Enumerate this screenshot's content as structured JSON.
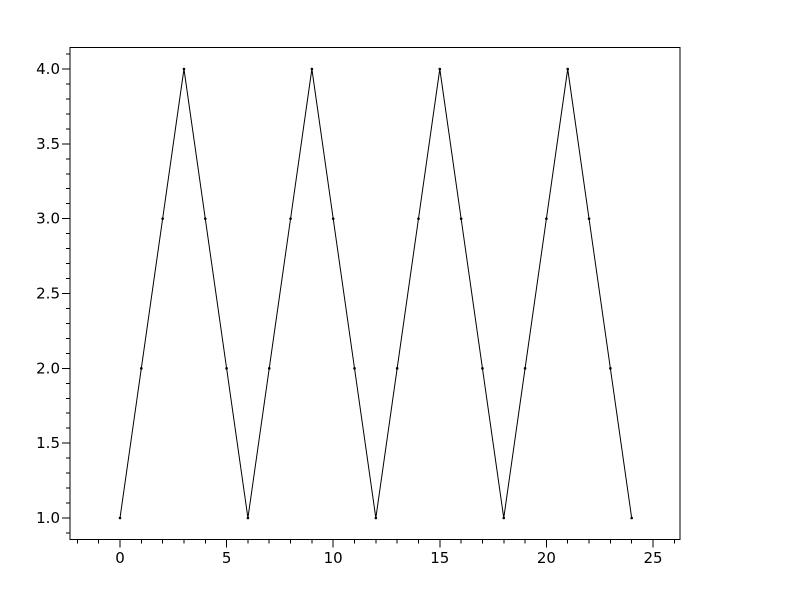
{
  "window": {
    "background": "#ffffff"
  },
  "chart_data": {
    "type": "line",
    "title": "",
    "xlabel": "",
    "ylabel": "",
    "x": [
      0,
      1,
      2,
      3,
      4,
      5,
      6,
      7,
      8,
      9,
      10,
      11,
      12,
      13,
      14,
      15,
      16,
      17,
      18,
      19,
      20,
      21,
      22,
      23,
      24
    ],
    "y": [
      1,
      2,
      3,
      4,
      3,
      2,
      1,
      2,
      3,
      4,
      3,
      2,
      1,
      2,
      3,
      4,
      3,
      2,
      1,
      2,
      3,
      4,
      3,
      2,
      1
    ],
    "line_color": "#000000",
    "line_width": 1,
    "marker": "dot",
    "marker_color": "#000000",
    "marker_radius_px": 1.3,
    "axis_color": "#000000",
    "tick_label_color": "#000000",
    "background_color": "#ffffff",
    "xlim": [
      -2.35,
      26.27
    ],
    "ylim": [
      0.857,
      4.145
    ],
    "x_ticks": {
      "values": [
        0,
        5,
        10,
        15,
        20,
        25
      ],
      "labels": [
        "0",
        "5",
        "10",
        "15",
        "20",
        "25"
      ]
    },
    "y_ticks": {
      "values": [
        1,
        1.5,
        2,
        2.5,
        3,
        3.5,
        4
      ],
      "labels": [
        "1.0",
        "1.5",
        "2.0",
        "2.5",
        "3.0",
        "3.5",
        "4.0"
      ]
    },
    "x_minor_step": 1,
    "y_minor_step": 0.1,
    "grid": false,
    "legend": null
  }
}
